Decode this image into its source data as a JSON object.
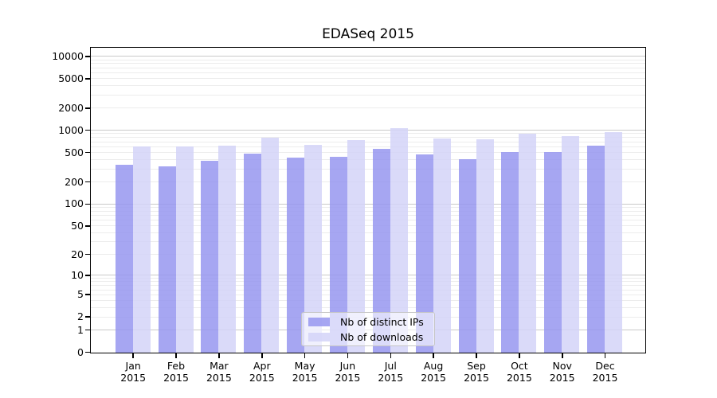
{
  "window": {
    "background": "#ffffff"
  },
  "chart_data": {
    "type": "bar",
    "title": "EDASeq 2015",
    "categories": [
      "Jan",
      "Feb",
      "Mar",
      "Apr",
      "May",
      "Jun",
      "Jul",
      "Aug",
      "Sep",
      "Oct",
      "Nov",
      "Dec"
    ],
    "x_tick_second_line": "2015",
    "series": [
      {
        "name": "Nb of distinct IPs",
        "color": "#9696f0",
        "values": [
          350,
          330,
          390,
          495,
          435,
          445,
          570,
          480,
          415,
          515,
          515,
          620
        ]
      },
      {
        "name": "Nb of downloads",
        "color": "#d4d4f8",
        "values": [
          610,
          610,
          630,
          795,
          640,
          755,
          1070,
          790,
          770,
          900,
          835,
          965
        ]
      }
    ],
    "bar_opacity": 0.85,
    "y_scale": "log1p",
    "y_ticks": [
      10000,
      5000,
      2000,
      1000,
      500,
      200,
      100,
      50,
      20,
      10,
      5,
      2,
      1,
      0
    ],
    "ylim": [
      0,
      12900
    ],
    "grid": true,
    "legend_position": "lower center",
    "colors": {
      "grid_major": "#c9c9c9",
      "grid_minor": "#ececec",
      "axis": "#000000",
      "text": "#000000"
    }
  }
}
